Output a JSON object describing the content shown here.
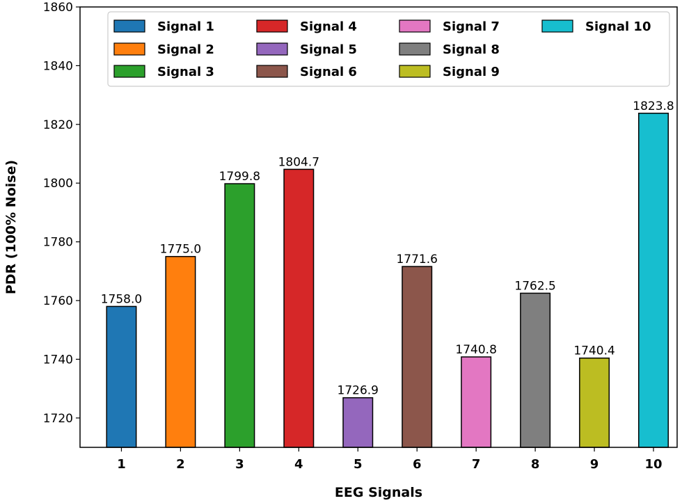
{
  "chart_data": {
    "type": "bar",
    "title": "",
    "xlabel": "EEG Signals",
    "ylabel": "PDR (100% Noise)",
    "categories": [
      "1",
      "2",
      "3",
      "4",
      "5",
      "6",
      "7",
      "8",
      "9",
      "10"
    ],
    "values": [
      1758.0,
      1775.0,
      1799.8,
      1804.7,
      1726.9,
      1771.6,
      1740.8,
      1762.5,
      1740.4,
      1823.8
    ],
    "value_labels": [
      "1758.0",
      "1775.0",
      "1799.8",
      "1804.7",
      "1726.9",
      "1771.6",
      "1740.8",
      "1762.5",
      "1740.4",
      "1823.8"
    ],
    "series_names": [
      "Signal 1",
      "Signal 2",
      "Signal 3",
      "Signal 4",
      "Signal 5",
      "Signal 6",
      "Signal 7",
      "Signal 8",
      "Signal 9",
      "Signal 10"
    ],
    "colors": [
      "#1f77b4",
      "#ff7f0e",
      "#2ca02c",
      "#d62728",
      "#9467bd",
      "#8c564b",
      "#e377c2",
      "#7f7f7f",
      "#bcbd22",
      "#17becf"
    ],
    "ylim": [
      1710,
      1860
    ],
    "yticks": [
      1720,
      1740,
      1760,
      1780,
      1800,
      1820,
      1840,
      1860
    ],
    "legend": {
      "position": "top",
      "columns": 4
    },
    "grid": false
  }
}
